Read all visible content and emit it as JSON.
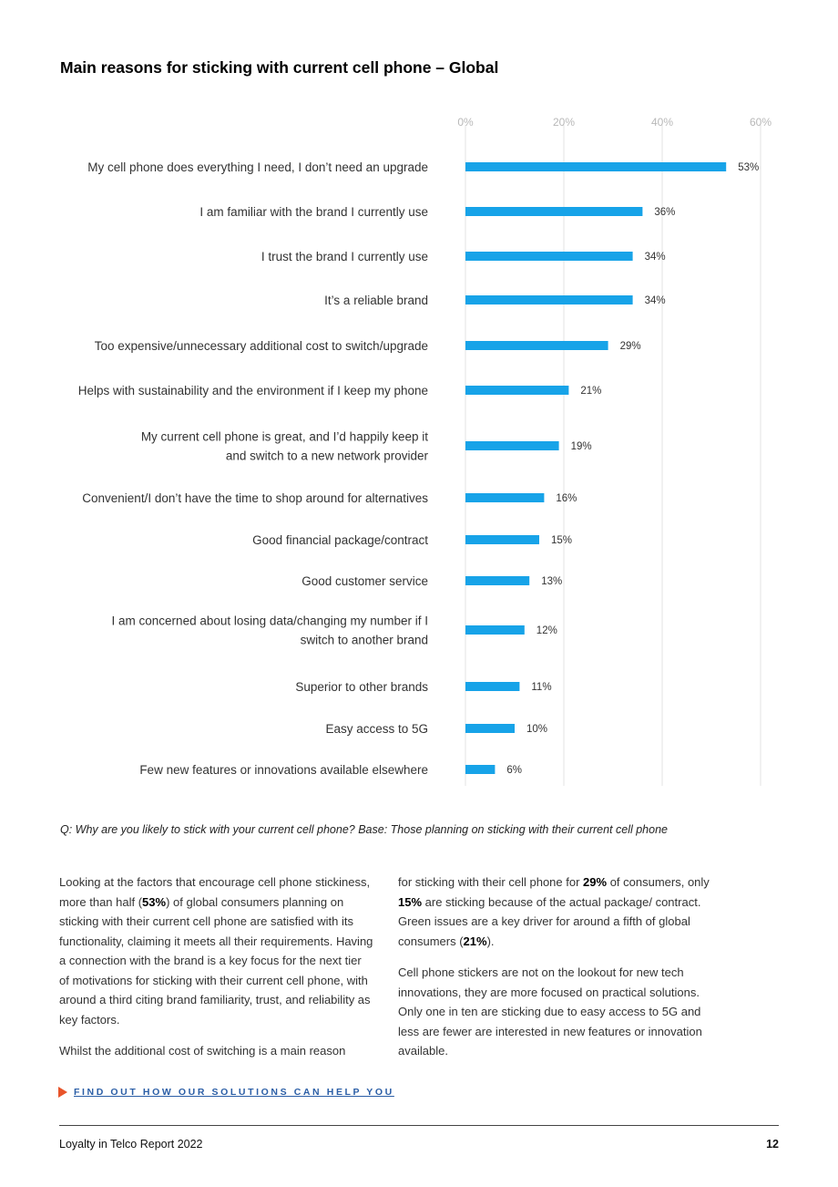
{
  "page_title": "Main reasons for sticking with current cell phone – Global",
  "chart_data": {
    "type": "bar",
    "orientation": "horizontal",
    "title": "Main reasons for sticking with current cell phone – Global",
    "xlim": [
      0,
      60
    ],
    "ticks": [
      0,
      20,
      40,
      60
    ],
    "tick_labels": [
      "0%",
      "20%",
      "40%",
      "60%"
    ],
    "grid": true,
    "bar_color": "#17a3e8",
    "categories": [
      [
        "My cell phone does everything I need, I don’t need an upgrade"
      ],
      [
        "I am familiar with the brand I currently use"
      ],
      [
        "I trust the brand I currently use"
      ],
      [
        "It’s a reliable brand"
      ],
      [
        "Too expensive/unnecessary additional cost to switch/upgrade"
      ],
      [
        "Helps with sustainability and the environment if I keep my phone"
      ],
      [
        "My current cell phone is great, and I’d happily keep it",
        "and switch to a new network provider"
      ],
      [
        "Convenient/I don’t have the time to shop around for alternatives"
      ],
      [
        "Good financial package/contract"
      ],
      [
        "Good customer service"
      ],
      [
        "I am concerned about losing data/changing my number if I",
        "switch to another brand"
      ],
      [
        "Superior to other brands"
      ],
      [
        "Easy access to 5G"
      ],
      [
        "Few new features or innovations available elsewhere"
      ]
    ],
    "values": [
      53,
      36,
      34,
      34,
      29,
      21,
      19,
      16,
      15,
      13,
      12,
      11,
      10,
      6
    ],
    "value_labels": [
      "53%",
      "36%",
      "34%",
      "34%",
      "29%",
      "21%",
      "19%",
      "16%",
      "15%",
      "13%",
      "12%",
      "11%",
      "10%",
      "6%"
    ]
  },
  "question": "Q: Why are you likely to stick with your current cell phone? Base: Those planning on sticking with their current cell phone",
  "body": {
    "left_p1": [
      {
        "t": "Looking at the factors that encourage cell phone stickiness, more than half ("
      },
      {
        "t": "53%",
        "b": true
      },
      {
        "t": ") of global consumers planning on sticking with their current cell phone are satisfied with its functionality, claiming it meets all their requirements. Having a connection with the brand is a key focus for the next tier of motivations for sticking with their current cell phone, with around a third citing brand familiarity, trust, and reliability as key factors."
      }
    ],
    "left_p2": [
      {
        "t": "Whilst the additional cost of switching is a main reason"
      }
    ],
    "right_p1": [
      {
        "t": "for sticking with their cell phone for "
      },
      {
        "t": "29%",
        "b": true
      },
      {
        "t": " of consumers, only "
      },
      {
        "t": "15%",
        "b": true
      },
      {
        "t": " are sticking because of the actual package/ contract. Green issues are a key driver for around a fifth of global consumers ("
      },
      {
        "t": "21%",
        "b": true
      },
      {
        "t": ")."
      }
    ],
    "right_p2": [
      {
        "t": "Cell phone stickers are not on the lookout for new tech innovations, they are more focused on practical solutions. Only one in ten are sticking due to easy access to 5G and less are fewer are interested in new features or innovation available."
      }
    ]
  },
  "cta_label": "FIND OUT HOW OUR SOLUTIONS CAN HELP YOU",
  "cta_arrow_color": "#e8542a",
  "cta_text_color": "#2b5ea6",
  "footer": {
    "report_name": "Loyalty in Telco Report 2022",
    "page_number": "12"
  }
}
